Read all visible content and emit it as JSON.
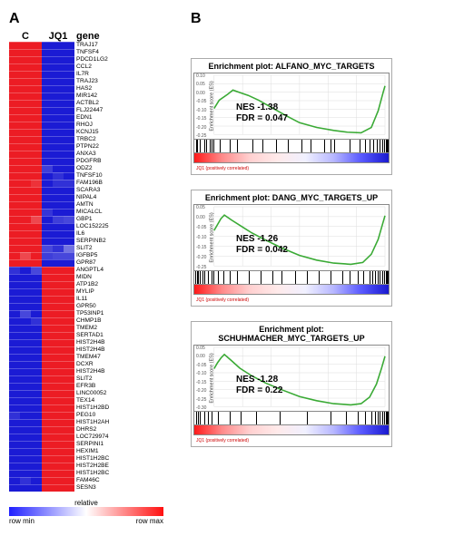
{
  "panels": {
    "A": "A",
    "B": "B"
  },
  "heatmap": {
    "group_labels": [
      "C",
      "JQ1"
    ],
    "gene_header": "gene",
    "n_cols_per_group": 3,
    "color_hi": "#ec1c24",
    "color_lo": "#1b1bd4",
    "color_mid": "#f5f5f5",
    "rows": [
      {
        "g": "TRAJ17",
        "a": [
          1,
          1,
          1
        ],
        "b": [
          0,
          0,
          0
        ]
      },
      {
        "g": "TNFSF4",
        "a": [
          1,
          1,
          1
        ],
        "b": [
          0,
          0,
          0
        ]
      },
      {
        "g": "PDCD1LG2",
        "a": [
          1,
          1,
          1
        ],
        "b": [
          0,
          0,
          0
        ]
      },
      {
        "g": "CCL2",
        "a": [
          1,
          1,
          1
        ],
        "b": [
          0,
          0,
          0
        ]
      },
      {
        "g": "IL7R",
        "a": [
          1,
          1,
          1
        ],
        "b": [
          0,
          0,
          0
        ]
      },
      {
        "g": "TRAJ23",
        "a": [
          1,
          1,
          1
        ],
        "b": [
          0,
          0,
          0
        ]
      },
      {
        "g": "HAS2",
        "a": [
          1,
          1,
          1
        ],
        "b": [
          0,
          0,
          0
        ]
      },
      {
        "g": "MIR142",
        "a": [
          1,
          1,
          1
        ],
        "b": [
          0,
          0,
          0
        ]
      },
      {
        "g": "ACTBL2",
        "a": [
          1,
          1,
          1
        ],
        "b": [
          0,
          0,
          0
        ]
      },
      {
        "g": "FLJ22447",
        "a": [
          1,
          1,
          1
        ],
        "b": [
          0,
          0,
          0
        ]
      },
      {
        "g": "EDN1",
        "a": [
          1,
          1,
          1
        ],
        "b": [
          0,
          0,
          0
        ]
      },
      {
        "g": "RHOJ",
        "a": [
          1,
          1,
          1
        ],
        "b": [
          0,
          0,
          0
        ]
      },
      {
        "g": "KCNJ15",
        "a": [
          1,
          1,
          1
        ],
        "b": [
          0,
          0,
          0
        ]
      },
      {
        "g": "TRBC2",
        "a": [
          1,
          1,
          1
        ],
        "b": [
          0,
          0,
          0
        ]
      },
      {
        "g": "PTPN22",
        "a": [
          1,
          1,
          1
        ],
        "b": [
          0,
          0,
          0
        ]
      },
      {
        "g": "ANXA3",
        "a": [
          1,
          1,
          1
        ],
        "b": [
          0,
          0,
          0
        ]
      },
      {
        "g": "PDGFRB",
        "a": [
          1,
          1,
          1
        ],
        "b": [
          0,
          0,
          0
        ]
      },
      {
        "g": "ODZ2",
        "a": [
          1,
          1,
          1
        ],
        "b": [
          0.08,
          0,
          0
        ]
      },
      {
        "g": "TNFSF10",
        "a": [
          1,
          1,
          1
        ],
        "b": [
          0,
          0.05,
          0
        ]
      },
      {
        "g": "FAM196B",
        "a": [
          1,
          1,
          0.95
        ],
        "b": [
          0,
          0.05,
          0.05
        ]
      },
      {
        "g": "SCARA3",
        "a": [
          1,
          1,
          1
        ],
        "b": [
          0,
          0,
          0
        ]
      },
      {
        "g": "NIPAL4",
        "a": [
          1,
          1,
          1
        ],
        "b": [
          0,
          0,
          0
        ]
      },
      {
        "g": "AMTN",
        "a": [
          1,
          1,
          1
        ],
        "b": [
          0,
          0,
          0
        ]
      },
      {
        "g": "MICALCL",
        "a": [
          1,
          1,
          1
        ],
        "b": [
          0.06,
          0,
          0
        ]
      },
      {
        "g": "GBP1",
        "a": [
          1,
          1,
          0.9
        ],
        "b": [
          0,
          0.08,
          0.1
        ]
      },
      {
        "g": "LOC152225",
        "a": [
          1,
          1,
          1
        ],
        "b": [
          0,
          0,
          0
        ]
      },
      {
        "g": "IL6",
        "a": [
          1,
          1,
          1
        ],
        "b": [
          0,
          0,
          0
        ]
      },
      {
        "g": "SERPINB2",
        "a": [
          1,
          1,
          1
        ],
        "b": [
          0,
          0,
          0
        ]
      },
      {
        "g": "SLIT2",
        "a": [
          1,
          1,
          1
        ],
        "b": [
          0.1,
          0.05,
          0.2
        ]
      },
      {
        "g": "IGFBP5",
        "a": [
          1,
          0.9,
          1
        ],
        "b": [
          0.08,
          0.1,
          0.1
        ]
      },
      {
        "g": "GPR87",
        "a": [
          1,
          1,
          1
        ],
        "b": [
          0,
          0,
          0
        ]
      },
      {
        "g": "ANGPTL4",
        "a": [
          0.05,
          0,
          0.1
        ],
        "b": [
          1,
          1,
          1
        ]
      },
      {
        "g": "MIDN",
        "a": [
          0,
          0,
          0
        ],
        "b": [
          1,
          1,
          1
        ]
      },
      {
        "g": "ATP1B2",
        "a": [
          0,
          0,
          0
        ],
        "b": [
          1,
          1,
          1
        ]
      },
      {
        "g": "MYLIP",
        "a": [
          0,
          0,
          0
        ],
        "b": [
          1,
          1,
          1
        ]
      },
      {
        "g": "IL11",
        "a": [
          0,
          0,
          0
        ],
        "b": [
          1,
          1,
          1
        ]
      },
      {
        "g": "GPR50",
        "a": [
          0,
          0,
          0
        ],
        "b": [
          1,
          1,
          1
        ]
      },
      {
        "g": "TP53INP1",
        "a": [
          0,
          0.1,
          0
        ],
        "b": [
          1,
          1,
          1
        ]
      },
      {
        "g": "CHMP1B",
        "a": [
          0,
          0,
          0.05
        ],
        "b": [
          1,
          1,
          1
        ]
      },
      {
        "g": "TMEM2",
        "a": [
          0,
          0,
          0
        ],
        "b": [
          1,
          1,
          1
        ]
      },
      {
        "g": "SERTAD1",
        "a": [
          0,
          0,
          0
        ],
        "b": [
          1,
          1,
          1
        ]
      },
      {
        "g": "HIST2H4B",
        "a": [
          0,
          0,
          0
        ],
        "b": [
          1,
          1,
          1
        ]
      },
      {
        "g": "HIST2H4B",
        "a": [
          0,
          0,
          0
        ],
        "b": [
          1,
          1,
          1
        ]
      },
      {
        "g": "TMEM47",
        "a": [
          0,
          0,
          0
        ],
        "b": [
          1,
          1,
          1
        ]
      },
      {
        "g": "DCXR",
        "a": [
          0,
          0,
          0
        ],
        "b": [
          1,
          1,
          1
        ]
      },
      {
        "g": "HIST2H4B",
        "a": [
          0,
          0,
          0
        ],
        "b": [
          1,
          1,
          1
        ]
      },
      {
        "g": "SLIT2",
        "a": [
          0,
          0,
          0
        ],
        "b": [
          1,
          1,
          1
        ]
      },
      {
        "g": "EFR3B",
        "a": [
          0,
          0,
          0
        ],
        "b": [
          1,
          1,
          1
        ]
      },
      {
        "g": "LINC00052",
        "a": [
          0,
          0,
          0
        ],
        "b": [
          1,
          1,
          1
        ]
      },
      {
        "g": "TEX14",
        "a": [
          0,
          0,
          0
        ],
        "b": [
          1,
          1,
          1
        ]
      },
      {
        "g": "HIST1H2BD",
        "a": [
          0,
          0,
          0
        ],
        "b": [
          1,
          1,
          1
        ]
      },
      {
        "g": "PEG10",
        "a": [
          0.05,
          0,
          0
        ],
        "b": [
          1,
          1,
          1
        ]
      },
      {
        "g": "HIST1H2AH",
        "a": [
          0,
          0,
          0
        ],
        "b": [
          1,
          1,
          1
        ]
      },
      {
        "g": "DHRS2",
        "a": [
          0,
          0,
          0
        ],
        "b": [
          1,
          1,
          1
        ]
      },
      {
        "g": "LOC729974",
        "a": [
          0,
          0,
          0
        ],
        "b": [
          1,
          1,
          1
        ]
      },
      {
        "g": "SERPINI1",
        "a": [
          0,
          0,
          0
        ],
        "b": [
          1,
          1,
          1
        ]
      },
      {
        "g": "HEXIM1",
        "a": [
          0,
          0,
          0
        ],
        "b": [
          1,
          1,
          1
        ]
      },
      {
        "g": "HIST1H2BC",
        "a": [
          0,
          0,
          0
        ],
        "b": [
          1,
          1,
          1
        ]
      },
      {
        "g": "HIST2H2BE",
        "a": [
          0,
          0,
          0
        ],
        "b": [
          1,
          1,
          1
        ]
      },
      {
        "g": "HIST1H2BC",
        "a": [
          0,
          0,
          0
        ],
        "b": [
          1,
          1,
          1
        ]
      },
      {
        "g": "FAM46C",
        "a": [
          0,
          0.05,
          0
        ],
        "b": [
          1,
          1,
          1
        ]
      },
      {
        "g": "SESN3",
        "a": [
          0,
          0,
          0
        ],
        "b": [
          1,
          1,
          1
        ]
      }
    ],
    "colorbar": {
      "left": "row min",
      "right": "row max",
      "title": "relative"
    }
  },
  "enrichments": [
    {
      "title": "Enrichment plot: ALFANO_MYC_TARGETS",
      "nes": "NES -1.38",
      "fdr": "FDR = 0.047",
      "yticks": [
        "0.10",
        "0.05",
        "0.00",
        "-0.05",
        "-0.10",
        "-0.15",
        "-0.20",
        "-0.25"
      ],
      "ylabel": "Enrichment score (ES)",
      "curve": [
        [
          0,
          0.56
        ],
        [
          0.03,
          0.42
        ],
        [
          0.08,
          0.32
        ],
        [
          0.11,
          0.25
        ],
        [
          0.15,
          0.29
        ],
        [
          0.2,
          0.34
        ],
        [
          0.26,
          0.42
        ],
        [
          0.34,
          0.55
        ],
        [
          0.42,
          0.68
        ],
        [
          0.5,
          0.8
        ],
        [
          0.6,
          0.88
        ],
        [
          0.7,
          0.93
        ],
        [
          0.78,
          0.96
        ],
        [
          0.86,
          0.97
        ],
        [
          0.92,
          0.88
        ],
        [
          0.96,
          0.6
        ],
        [
          0.99,
          0.28
        ],
        [
          1,
          0.18
        ]
      ],
      "ticks": [
        0.01,
        0.015,
        0.03,
        0.05,
        0.06,
        0.08,
        0.09,
        0.1,
        0.13,
        0.18,
        0.22,
        0.3,
        0.35,
        0.42,
        0.48,
        0.55,
        0.6,
        0.67,
        0.7,
        0.72,
        0.8,
        0.85,
        0.88,
        0.9,
        0.92,
        0.94,
        0.955,
        0.965,
        0.975,
        0.985,
        0.99,
        0.995
      ],
      "gradient": [
        "#ff1a1a",
        "#ff8a8a",
        "#ffd0d0",
        "#ffeaea",
        "#f0f0ff",
        "#b8b8ff",
        "#5a5aff",
        "#1a1ad0"
      ],
      "grad_label": "JQ1 (positively correlated)"
    },
    {
      "title": "Enrichment plot: DANG_MYC_TARGETS_UP",
      "nes": "NES -1.26",
      "fdr": "FDR = 0.042",
      "yticks": [
        "0.05",
        "0.00",
        "-0.05",
        "-0.10",
        "-0.15",
        "-0.20",
        "-0.25"
      ],
      "ylabel": "Enrichment score (ES)",
      "curve": [
        [
          0,
          0.4
        ],
        [
          0.02,
          0.3
        ],
        [
          0.04,
          0.2
        ],
        [
          0.06,
          0.14
        ],
        [
          0.1,
          0.22
        ],
        [
          0.16,
          0.33
        ],
        [
          0.22,
          0.44
        ],
        [
          0.3,
          0.56
        ],
        [
          0.4,
          0.7
        ],
        [
          0.5,
          0.82
        ],
        [
          0.6,
          0.9
        ],
        [
          0.7,
          0.95
        ],
        [
          0.8,
          0.97
        ],
        [
          0.87,
          0.94
        ],
        [
          0.92,
          0.8
        ],
        [
          0.96,
          0.55
        ],
        [
          0.99,
          0.25
        ],
        [
          1,
          0.15
        ]
      ],
      "ticks": [
        0.005,
        0.015,
        0.02,
        0.03,
        0.04,
        0.05,
        0.07,
        0.09,
        0.1,
        0.12,
        0.15,
        0.18,
        0.22,
        0.28,
        0.34,
        0.4,
        0.45,
        0.52,
        0.58,
        0.64,
        0.7,
        0.76,
        0.8,
        0.84,
        0.87,
        0.9,
        0.915,
        0.93,
        0.945,
        0.955,
        0.965,
        0.975,
        0.985,
        0.99,
        0.995
      ],
      "gradient": [
        "#ff1a1a",
        "#ff8a8a",
        "#ffd0d0",
        "#ffeaea",
        "#f0f0ff",
        "#b8b8ff",
        "#5a5aff",
        "#1a1ad0"
      ],
      "grad_label": "JQ1 (positively correlated)"
    },
    {
      "title": "Enrichment plot: SCHUHMACHER_MYC_TARGETS_UP",
      "nes": "NES -1.28",
      "fdr": "FDR = 0.22",
      "yticks": [
        "0.05",
        "0.00",
        "-0.05",
        "-0.10",
        "-0.15",
        "-0.20",
        "-0.25",
        "-0.30"
      ],
      "ylabel": "Enrichment score (ES)",
      "curve": [
        [
          0,
          0.36
        ],
        [
          0.02,
          0.26
        ],
        [
          0.04,
          0.18
        ],
        [
          0.06,
          0.12
        ],
        [
          0.1,
          0.22
        ],
        [
          0.15,
          0.35
        ],
        [
          0.22,
          0.48
        ],
        [
          0.3,
          0.6
        ],
        [
          0.4,
          0.72
        ],
        [
          0.5,
          0.83
        ],
        [
          0.6,
          0.9
        ],
        [
          0.7,
          0.95
        ],
        [
          0.8,
          0.97
        ],
        [
          0.86,
          0.95
        ],
        [
          0.91,
          0.84
        ],
        [
          0.95,
          0.62
        ],
        [
          0.98,
          0.35
        ],
        [
          1,
          0.15
        ]
      ],
      "ticks": [
        0.01,
        0.02,
        0.03,
        0.05,
        0.07,
        0.09,
        0.12,
        0.18,
        0.24,
        0.32,
        0.44,
        0.58,
        0.7,
        0.78,
        0.84,
        0.88,
        0.91,
        0.93,
        0.945,
        0.955,
        0.965,
        0.975,
        0.985,
        0.99,
        0.995
      ],
      "gradient": [
        "#ff1a1a",
        "#ff8a8a",
        "#ffd0d0",
        "#ffeaea",
        "#f0f0ff",
        "#b8b8ff",
        "#5a5aff",
        "#1a1ad0"
      ],
      "grad_label": "JQ1 (positively correlated)"
    }
  ]
}
